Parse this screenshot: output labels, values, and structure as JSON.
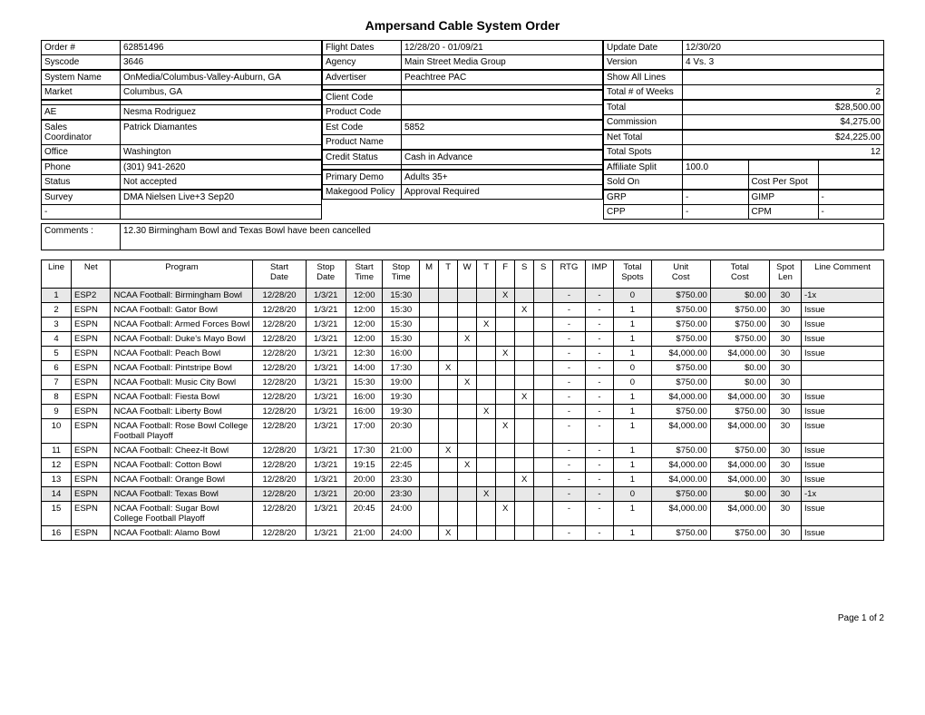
{
  "title": "Ampersand Cable System Order",
  "col1": [
    {
      "label": "Order #",
      "value": "62851496"
    },
    {
      "label": "Syscode",
      "value": "3646"
    },
    {
      "label": "System Name",
      "value": "OnMedia/Columbus-Valley-Auburn, GA"
    },
    {
      "label": "Market",
      "value": "Columbus, GA"
    },
    {
      "label": "",
      "value": ""
    },
    {
      "label": "AE",
      "value": "Nesma Rodriguez"
    },
    {
      "label": "Sales Coordinator",
      "value": "Patrick Diamantes"
    },
    {
      "label": "Office",
      "value": "Washington"
    },
    {
      "label": "Phone",
      "value": "(301) 941-2620"
    },
    {
      "label": "Status",
      "value": "Not accepted"
    },
    {
      "label": "Survey",
      "value": "DMA Nielsen Live+3 Sep20"
    },
    {
      "label": "-",
      "value": ""
    }
  ],
  "col2": [
    {
      "label": "Flight Dates",
      "value": "12/28/20 - 01/09/21"
    },
    {
      "label": "Agency",
      "value": "Main Street Media Group"
    },
    {
      "label": "Advertiser",
      "value": "Peachtree PAC"
    },
    {
      "label": "",
      "value": ""
    },
    {
      "label": "Client Code",
      "value": ""
    },
    {
      "label": "Product Code",
      "value": ""
    },
    {
      "label": "Est Code",
      "value": "5852"
    },
    {
      "label": "Product Name",
      "value": ""
    },
    {
      "label": "Credit Status",
      "value": "Cash in Advance"
    },
    {
      "label": "",
      "value": ""
    },
    {
      "label": "Primary Demo",
      "value": "Adults 35+"
    },
    {
      "label": "Makegood Policy",
      "value": "Approval Required"
    }
  ],
  "col3": [
    {
      "label": "Update Date",
      "value": "12/30/20"
    },
    {
      "label": "Version",
      "value": "4 Vs. 3"
    },
    {
      "label": "Show All Lines",
      "value": ""
    },
    {
      "label": "Total # of Weeks",
      "value": "2",
      "right": true
    },
    {
      "label": "Total",
      "value": "$28,500.00",
      "right": true
    },
    {
      "label": "Commission",
      "value": "$4,275.00",
      "right": true
    },
    {
      "label": "Net Total",
      "value": "$24,225.00",
      "right": true
    },
    {
      "label": "Total Spots",
      "value": "12",
      "right": true
    },
    {
      "label": "Affiliate Split",
      "value": "100.0",
      "split": true,
      "v2": ""
    },
    {
      "label": "Sold On",
      "value": "",
      "split": true,
      "v2label": "Cost Per Spot",
      "v2": ""
    },
    {
      "label": "GRP",
      "value": "-",
      "split": true,
      "v2label": "GIMP",
      "v2": "-"
    },
    {
      "label": "CPP",
      "value": "-",
      "split": true,
      "v2label": "CPM",
      "v2": "-"
    }
  ],
  "comments_label": "Comments :",
  "comments_value": "12.30 Birmingham Bowl and Texas Bowl have been cancelled",
  "columns": [
    "Line",
    "Net",
    "Program",
    "Start Date",
    "Stop Date",
    "Start Time",
    "Stop Time",
    "M",
    "T",
    "W",
    "T",
    "F",
    "S",
    "S",
    "RTG",
    "IMP",
    "Total Spots",
    "Unit Cost",
    "Total Cost",
    "Spot Len",
    "Line Comment"
  ],
  "rows": [
    {
      "shade": true,
      "line": "1",
      "net": "ESP2",
      "program": "NCAA Football: Birmingham Bowl",
      "sd": "12/28/20",
      "ed": "1/3/21",
      "st": "12:00",
      "et": "15:30",
      "days": [
        "",
        "",
        "",
        "",
        "X",
        "",
        ""
      ],
      "rtg": "-",
      "imp": "-",
      "ts": "0",
      "uc": "$750.00",
      "tc": "$0.00",
      "len": "30",
      "comment": "-1x",
      "ts_shade": true
    },
    {
      "line": "2",
      "net": "ESPN",
      "program": "NCAA Football: Gator Bowl",
      "sd": "12/28/20",
      "ed": "1/3/21",
      "st": "12:00",
      "et": "15:30",
      "days": [
        "",
        "",
        "",
        "",
        "",
        "X",
        ""
      ],
      "rtg": "-",
      "imp": "-",
      "ts": "1",
      "uc": "$750.00",
      "tc": "$750.00",
      "len": "30",
      "comment": "Issue"
    },
    {
      "line": "3",
      "net": "ESPN",
      "program": "NCAA Football: Armed Forces Bowl",
      "sd": "12/28/20",
      "ed": "1/3/21",
      "st": "12:00",
      "et": "15:30",
      "days": [
        "",
        "",
        "",
        "X",
        "",
        "",
        ""
      ],
      "rtg": "-",
      "imp": "-",
      "ts": "1",
      "uc": "$750.00",
      "tc": "$750.00",
      "len": "30",
      "comment": "Issue"
    },
    {
      "line": "4",
      "net": "ESPN",
      "program": "NCAA Football: Duke's Mayo Bowl",
      "sd": "12/28/20",
      "ed": "1/3/21",
      "st": "12:00",
      "et": "15:30",
      "days": [
        "",
        "",
        "X",
        "",
        "",
        "",
        ""
      ],
      "rtg": "-",
      "imp": "-",
      "ts": "1",
      "uc": "$750.00",
      "tc": "$750.00",
      "len": "30",
      "comment": "Issue"
    },
    {
      "line": "5",
      "net": "ESPN",
      "program": "NCAA Football: Peach Bowl",
      "sd": "12/28/20",
      "ed": "1/3/21",
      "st": "12:30",
      "et": "16:00",
      "days": [
        "",
        "",
        "",
        "",
        "X",
        "",
        ""
      ],
      "rtg": "-",
      "imp": "-",
      "ts": "1",
      "uc": "$4,000.00",
      "tc": "$4,000.00",
      "len": "30",
      "comment": "Issue"
    },
    {
      "line": "6",
      "net": "ESPN",
      "program": "NCAA Football: Pintstripe Bowl",
      "sd": "12/28/20",
      "ed": "1/3/21",
      "st": "14:00",
      "et": "17:30",
      "days": [
        "",
        "X",
        "",
        "",
        "",
        "",
        ""
      ],
      "rtg": "-",
      "imp": "-",
      "ts": "0",
      "uc": "$750.00",
      "tc": "$0.00",
      "len": "30",
      "comment": ""
    },
    {
      "line": "7",
      "net": "ESPN",
      "program": "NCAA Football: Music City Bowl",
      "sd": "12/28/20",
      "ed": "1/3/21",
      "st": "15:30",
      "et": "19:00",
      "days": [
        "",
        "",
        "X",
        "",
        "",
        "",
        ""
      ],
      "rtg": "-",
      "imp": "-",
      "ts": "0",
      "uc": "$750.00",
      "tc": "$0.00",
      "len": "30",
      "comment": ""
    },
    {
      "line": "8",
      "net": "ESPN",
      "program": "NCAA Football: Fiesta Bowl",
      "sd": "12/28/20",
      "ed": "1/3/21",
      "st": "16:00",
      "et": "19:30",
      "days": [
        "",
        "",
        "",
        "",
        "",
        "X",
        ""
      ],
      "rtg": "-",
      "imp": "-",
      "ts": "1",
      "uc": "$4,000.00",
      "tc": "$4,000.00",
      "len": "30",
      "comment": "Issue"
    },
    {
      "line": "9",
      "net": "ESPN",
      "program": "NCAA Football: Liberty Bowl",
      "sd": "12/28/20",
      "ed": "1/3/21",
      "st": "16:00",
      "et": "19:30",
      "days": [
        "",
        "",
        "",
        "X",
        "",
        "",
        ""
      ],
      "rtg": "-",
      "imp": "-",
      "ts": "1",
      "uc": "$750.00",
      "tc": "$750.00",
      "len": "30",
      "comment": "Issue"
    },
    {
      "line": "10",
      "net": "ESPN",
      "program": "NCAA Football: Rose Bowl College Football Playoff",
      "sd": "12/28/20",
      "ed": "1/3/21",
      "st": "17:00",
      "et": "20:30",
      "days": [
        "",
        "",
        "",
        "",
        "X",
        "",
        ""
      ],
      "rtg": "-",
      "imp": "-",
      "ts": "1",
      "uc": "$4,000.00",
      "tc": "$4,000.00",
      "len": "30",
      "comment": "Issue"
    },
    {
      "line": "11",
      "net": "ESPN",
      "program": "NCAA Football: Cheez-It Bowl",
      "sd": "12/28/20",
      "ed": "1/3/21",
      "st": "17:30",
      "et": "21:00",
      "days": [
        "",
        "X",
        "",
        "",
        "",
        "",
        ""
      ],
      "rtg": "-",
      "imp": "-",
      "ts": "1",
      "uc": "$750.00",
      "tc": "$750.00",
      "len": "30",
      "comment": "Issue"
    },
    {
      "line": "12",
      "net": "ESPN",
      "program": "NCAA Football: Cotton Bowl",
      "sd": "12/28/20",
      "ed": "1/3/21",
      "st": "19:15",
      "et": "22:45",
      "days": [
        "",
        "",
        "X",
        "",
        "",
        "",
        ""
      ],
      "rtg": "-",
      "imp": "-",
      "ts": "1",
      "uc": "$4,000.00",
      "tc": "$4,000.00",
      "len": "30",
      "comment": "Issue"
    },
    {
      "line": "13",
      "net": "ESPN",
      "program": "NCAA Football: Orange Bowl",
      "sd": "12/28/20",
      "ed": "1/3/21",
      "st": "20:00",
      "et": "23:30",
      "days": [
        "",
        "",
        "",
        "",
        "",
        "X",
        ""
      ],
      "rtg": "-",
      "imp": "-",
      "ts": "1",
      "uc": "$4,000.00",
      "tc": "$4,000.00",
      "len": "30",
      "comment": "Issue"
    },
    {
      "shade": true,
      "line": "14",
      "net": "ESPN",
      "program": "NCAA Football: Texas Bowl",
      "sd": "12/28/20",
      "ed": "1/3/21",
      "st": "20:00",
      "et": "23:30",
      "days": [
        "",
        "",
        "",
        "X",
        "",
        "",
        ""
      ],
      "rtg": "-",
      "imp": "-",
      "ts": "0",
      "uc": "$750.00",
      "tc": "$0.00",
      "len": "30",
      "comment": "-1x",
      "ts_shade": true
    },
    {
      "line": "15",
      "net": "ESPN",
      "program": "NCAA Football: Sugar Bowl College Football Playoff",
      "sd": "12/28/20",
      "ed": "1/3/21",
      "st": "20:45",
      "et": "24:00",
      "days": [
        "",
        "",
        "",
        "",
        "X",
        "",
        ""
      ],
      "rtg": "-",
      "imp": "-",
      "ts": "1",
      "uc": "$4,000.00",
      "tc": "$4,000.00",
      "len": "30",
      "comment": "Issue"
    },
    {
      "line": "16",
      "net": "ESPN",
      "program": "NCAA Football: Alamo Bowl",
      "sd": "12/28/20",
      "ed": "1/3/21",
      "st": "21:00",
      "et": "24:00",
      "days": [
        "",
        "X",
        "",
        "",
        "",
        "",
        ""
      ],
      "rtg": "-",
      "imp": "-",
      "ts": "1",
      "uc": "$750.00",
      "tc": "$750.00",
      "len": "30",
      "comment": "Issue"
    }
  ],
  "footer": "Page 1 of 2"
}
